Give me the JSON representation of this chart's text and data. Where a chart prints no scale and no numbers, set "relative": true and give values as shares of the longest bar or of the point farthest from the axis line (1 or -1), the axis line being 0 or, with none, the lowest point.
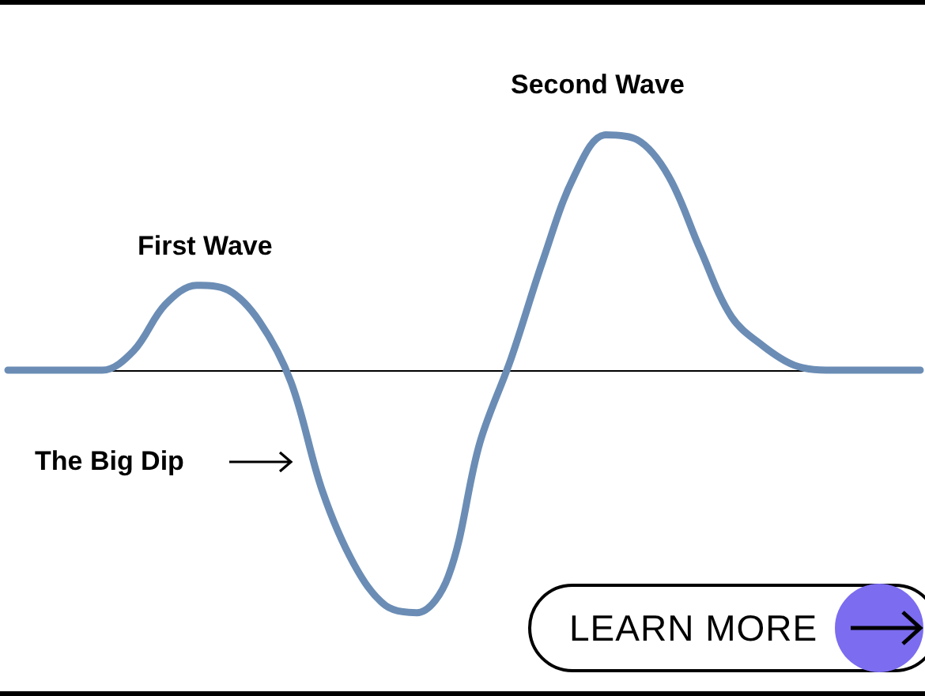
{
  "chart_data": {
    "type": "line",
    "relative": true,
    "categories": [
      null,
      null,
      null,
      null,
      null,
      null,
      null,
      null,
      null,
      null,
      null,
      null,
      null,
      null,
      null,
      null,
      null,
      null,
      null,
      null,
      null,
      null,
      null,
      null,
      null,
      null,
      null,
      null,
      null,
      null
    ],
    "series": [
      {
        "color": "#6b8db5",
        "values": [
          0,
          0,
          0,
          0,
          0.08,
          0.27,
          0.35,
          0.33,
          0.2,
          -0.05,
          -0.5,
          -0.8,
          -0.97,
          -1,
          -0.85,
          -0.3,
          0.05,
          0.45,
          0.8,
          0.97,
          0.95,
          0.8,
          0.5,
          0.22,
          0.1,
          0.02,
          0,
          0,
          0,
          0
        ]
      }
    ],
    "annotations": [
      "First Wave",
      "Second Wave",
      "The Big Dip",
      "LEARN MORE"
    ],
    "marker": "none",
    "line_style": "solid",
    "grid": false
  }
}
